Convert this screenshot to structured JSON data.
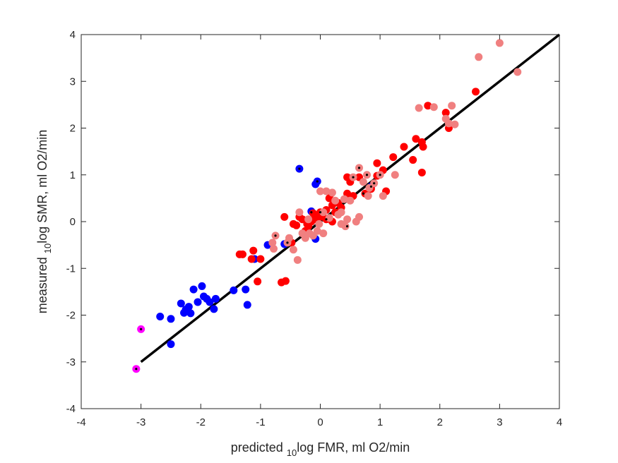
{
  "chart_data": {
    "type": "scatter",
    "title": "",
    "xlabel": {
      "prefix": "predicted ",
      "subscript": "10",
      "suffix": "log FMR, ml O2/min"
    },
    "ylabel": {
      "prefix": "measured ",
      "subscript": "10",
      "suffix": "log SMR, ml O2/min"
    },
    "xlim": [
      -4,
      4
    ],
    "ylim": [
      -4,
      4
    ],
    "xticks": [
      -4,
      -3,
      -2,
      -1,
      0,
      1,
      2,
      3,
      4
    ],
    "yticks": [
      -4,
      -3,
      -2,
      -1,
      0,
      1,
      2,
      3,
      4
    ],
    "grid": false,
    "legend": "none",
    "fit_line": {
      "color": "#000000",
      "x": [
        -3,
        4
      ],
      "y": [
        -3,
        4
      ]
    },
    "series": [
      {
        "color": "#0000ff",
        "points": [
          [
            -2.5,
            -2.62
          ],
          [
            -2.68,
            -2.03
          ],
          [
            -2.5,
            -2.08
          ],
          [
            -2.33,
            -1.75
          ],
          [
            -2.25,
            -1.88
          ],
          [
            -2.28,
            -1.95
          ],
          [
            -2.2,
            -1.82
          ],
          [
            -2.17,
            -1.96
          ],
          [
            -2.12,
            -1.45
          ],
          [
            -2.05,
            -1.72
          ],
          [
            -1.98,
            -1.38
          ],
          [
            -1.95,
            -1.6
          ],
          [
            -1.9,
            -1.65
          ],
          [
            -1.85,
            -1.72
          ],
          [
            -1.78,
            -1.87
          ],
          [
            -1.75,
            -1.65
          ],
          [
            -1.45,
            -1.47
          ],
          [
            -1.25,
            -1.45
          ],
          [
            -1.22,
            -1.78
          ],
          [
            -1.1,
            -0.8
          ],
          [
            -0.88,
            -0.5
          ],
          [
            -0.6,
            -0.48
          ],
          [
            -0.35,
            1.13
          ],
          [
            -0.05,
            0.86
          ],
          [
            -0.08,
            0.8
          ],
          [
            0.85,
            0.75
          ],
          [
            -0.15,
            0.22
          ],
          [
            -0.08,
            -0.37
          ]
        ]
      },
      {
        "color": "#ff00ff",
        "points": [
          [
            -3.0,
            -2.3
          ],
          [
            -3.08,
            -3.15
          ]
        ]
      },
      {
        "color": "#ff0000",
        "points": [
          [
            -1.35,
            -0.7
          ],
          [
            -1.3,
            -0.7
          ],
          [
            -1.12,
            -0.62
          ],
          [
            -1.15,
            -0.8
          ],
          [
            -1.05,
            -1.28
          ],
          [
            -1.0,
            -0.8
          ],
          [
            -0.65,
            -1.3
          ],
          [
            -0.58,
            -1.27
          ],
          [
            -0.6,
            0.1
          ],
          [
            -0.48,
            -0.45
          ],
          [
            -0.45,
            -0.05
          ],
          [
            -0.4,
            -0.08
          ],
          [
            -0.35,
            0.1
          ],
          [
            -0.3,
            0.05
          ],
          [
            -0.25,
            -0.2
          ],
          [
            -0.2,
            -0.1
          ],
          [
            -0.15,
            0.0
          ],
          [
            -0.1,
            0.05
          ],
          [
            -0.05,
            0.1
          ],
          [
            0.0,
            0.2
          ],
          [
            0.05,
            0.1
          ],
          [
            0.1,
            0.25
          ],
          [
            0.15,
            0.5
          ],
          [
            0.2,
            0.35
          ],
          [
            0.25,
            0.2
          ],
          [
            0.3,
            0.4
          ],
          [
            0.35,
            0.3
          ],
          [
            0.45,
            0.6
          ],
          [
            0.55,
            0.55
          ],
          [
            0.45,
            0.95
          ],
          [
            0.5,
            0.85
          ],
          [
            0.75,
            0.6
          ],
          [
            0.85,
            0.7
          ],
          [
            0.95,
            0.98
          ],
          [
            0.95,
            1.25
          ],
          [
            1.1,
            0.65
          ],
          [
            1.22,
            1.38
          ],
          [
            1.4,
            1.6
          ],
          [
            1.55,
            1.32
          ],
          [
            1.6,
            1.77
          ],
          [
            1.7,
            1.7
          ],
          [
            1.72,
            1.6
          ],
          [
            1.7,
            1.05
          ],
          [
            1.8,
            2.48
          ],
          [
            2.1,
            2.33
          ],
          [
            2.15,
            2.0
          ],
          [
            2.6,
            2.78
          ],
          [
            0.2,
            0.0
          ],
          [
            0.1,
            0.05
          ],
          [
            -0.12,
            0.18
          ],
          [
            -0.02,
            0.1
          ],
          [
            -0.22,
            -0.05
          ],
          [
            0.18,
            0.6
          ],
          [
            0.65,
            0.95
          ],
          [
            1.05,
            1.1
          ]
        ]
      },
      {
        "color": "#f08080",
        "points": [
          [
            -0.78,
            -0.58
          ],
          [
            -0.8,
            -0.45
          ],
          [
            -0.75,
            -0.3
          ],
          [
            -0.55,
            -0.45
          ],
          [
            -0.52,
            -0.35
          ],
          [
            -0.45,
            -0.6
          ],
          [
            -0.38,
            -0.82
          ],
          [
            -0.3,
            -0.25
          ],
          [
            -0.25,
            -0.35
          ],
          [
            -0.18,
            -0.25
          ],
          [
            -0.12,
            -0.3
          ],
          [
            -0.05,
            -0.2
          ],
          [
            -0.02,
            -0.05
          ],
          [
            0.0,
            0.65
          ],
          [
            0.05,
            0.2
          ],
          [
            0.1,
            0.65
          ],
          [
            0.2,
            0.62
          ],
          [
            0.3,
            0.15
          ],
          [
            0.35,
            -0.05
          ],
          [
            0.4,
            0.48
          ],
          [
            0.42,
            -0.1
          ],
          [
            0.5,
            0.45
          ],
          [
            0.55,
            0.95
          ],
          [
            0.6,
            0.0
          ],
          [
            0.65,
            0.1
          ],
          [
            0.65,
            1.15
          ],
          [
            0.72,
            0.85
          ],
          [
            0.78,
            1.0
          ],
          [
            0.82,
            0.72
          ],
          [
            0.9,
            0.82
          ],
          [
            1.0,
            1.0
          ],
          [
            1.05,
            0.55
          ],
          [
            1.25,
            1.0
          ],
          [
            1.65,
            2.43
          ],
          [
            1.9,
            2.45
          ],
          [
            2.1,
            2.2
          ],
          [
            2.15,
            2.1
          ],
          [
            2.2,
            2.48
          ],
          [
            2.25,
            2.08
          ],
          [
            2.65,
            3.52
          ],
          [
            3.0,
            3.82
          ],
          [
            3.3,
            3.2
          ],
          [
            0.25,
            0.45
          ],
          [
            0.45,
            0.05
          ],
          [
            -0.35,
            0.2
          ],
          [
            -0.2,
            0.05
          ],
          [
            0.05,
            -0.25
          ],
          [
            0.15,
            0.08
          ],
          [
            0.8,
            0.55
          ],
          [
            0.35,
            0.2
          ]
        ]
      }
    ],
    "annotated_points": [
      [
        -0.35,
        1.13
      ],
      [
        -0.05,
        0.86
      ],
      [
        -3.0,
        -2.3
      ],
      [
        -3.08,
        -3.15
      ],
      [
        0.85,
        0.75
      ],
      [
        -0.75,
        -0.3
      ],
      [
        -0.55,
        -0.45
      ],
      [
        -0.15,
        0.2
      ],
      [
        0.0,
        0.2
      ],
      [
        0.55,
        0.95
      ],
      [
        0.65,
        1.15
      ],
      [
        0.72,
        0.6
      ],
      [
        0.78,
        1.0
      ],
      [
        0.9,
        0.82
      ],
      [
        1.0,
        1.0
      ],
      [
        0.45,
        -0.1
      ],
      [
        0.1,
        0.05
      ]
    ]
  }
}
